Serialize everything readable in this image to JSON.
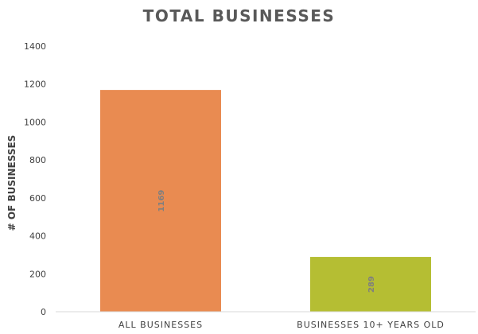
{
  "chart_data": {
    "type": "bar",
    "title": "TOTAL BUSINESSES",
    "xlabel": "",
    "ylabel": "# OF BUSINESSES",
    "categories": [
      "ALL BUSINESSES",
      "BUSINESSES 10+ YEARS OLD"
    ],
    "values": [
      1169,
      289
    ],
    "data_labels": [
      "1169",
      "289"
    ],
    "bar_colors": [
      "#E98B51",
      "#B5BE33"
    ],
    "ylim": [
      0,
      1400
    ],
    "yticks": [
      0,
      200,
      400,
      600,
      800,
      1000,
      1200,
      1400
    ],
    "grid": false,
    "legend": "none"
  },
  "colors": {
    "title": "#595959",
    "axis_text": "#404040",
    "data_label": "#7f7f7f",
    "axis_line": "#d9d9d9"
  }
}
